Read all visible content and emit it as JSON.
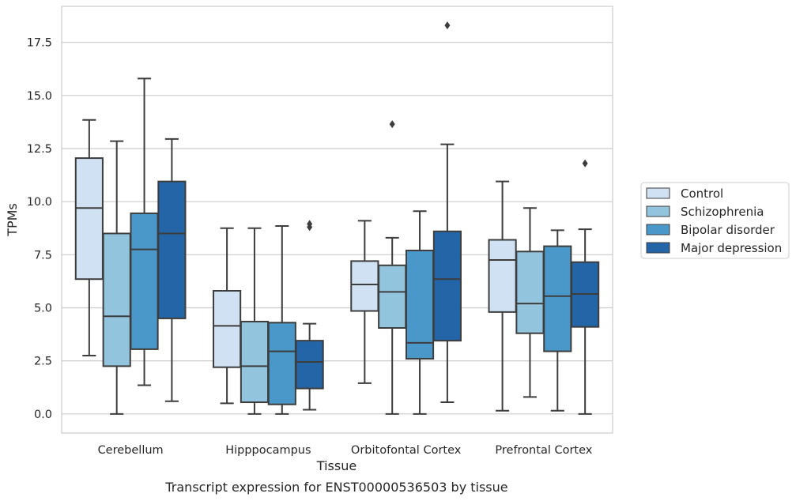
{
  "chart_data": {
    "type": "boxplot",
    "categories": [
      "Cerebellum",
      "Hipppocampus",
      "Orbitofontal Cortex",
      "Prefrontal Cortex"
    ],
    "xlabel": "Tissue",
    "ylabel": "TPMs",
    "caption": "Transcript expression for ENST00000536503 by tissue",
    "ylim": [
      -0.9,
      19.2
    ],
    "yticks": [
      0.0,
      2.5,
      5.0,
      7.5,
      10.0,
      12.5,
      15.0,
      17.5
    ],
    "ytick_labels": [
      "0.0",
      "2.5",
      "5.0",
      "7.5",
      "10.0",
      "12.5",
      "15.0",
      "17.5"
    ],
    "grid": "horizontal",
    "legend_position": "right",
    "series": [
      {
        "name": "Control",
        "color": "#cfe1f2",
        "boxes": [
          {
            "whisker_low": 2.75,
            "q1": 6.35,
            "median": 9.7,
            "q3": 12.05,
            "whisker_high": 13.85,
            "outliers": []
          },
          {
            "whisker_low": 0.5,
            "q1": 2.2,
            "median": 4.15,
            "q3": 5.8,
            "whisker_high": 8.75,
            "outliers": []
          },
          {
            "whisker_low": 1.45,
            "q1": 4.85,
            "median": 6.1,
            "q3": 7.2,
            "whisker_high": 9.1,
            "outliers": []
          },
          {
            "whisker_low": 0.15,
            "q1": 4.8,
            "median": 7.25,
            "q3": 8.2,
            "whisker_high": 10.95,
            "outliers": []
          }
        ]
      },
      {
        "name": "Schizophrenia",
        "color": "#93c4de",
        "boxes": [
          {
            "whisker_low": 0.0,
            "q1": 2.25,
            "median": 4.6,
            "q3": 8.5,
            "whisker_high": 12.85,
            "outliers": []
          },
          {
            "whisker_low": 0.0,
            "q1": 0.55,
            "median": 2.25,
            "q3": 4.35,
            "whisker_high": 8.75,
            "outliers": []
          },
          {
            "whisker_low": 0.0,
            "q1": 4.05,
            "median": 5.75,
            "q3": 7.0,
            "whisker_high": 8.3,
            "outliers": [
              13.65
            ]
          },
          {
            "whisker_low": 0.8,
            "q1": 3.8,
            "median": 5.2,
            "q3": 7.65,
            "whisker_high": 9.7,
            "outliers": []
          }
        ]
      },
      {
        "name": "Bipolar disorder",
        "color": "#4a98c9",
        "boxes": [
          {
            "whisker_low": 1.35,
            "q1": 3.05,
            "median": 7.75,
            "q3": 9.45,
            "whisker_high": 15.8,
            "outliers": []
          },
          {
            "whisker_low": 0.0,
            "q1": 0.45,
            "median": 2.95,
            "q3": 4.3,
            "whisker_high": 8.85,
            "outliers": []
          },
          {
            "whisker_low": 0.0,
            "q1": 2.6,
            "median": 3.35,
            "q3": 7.7,
            "whisker_high": 9.55,
            "outliers": []
          },
          {
            "whisker_low": 0.15,
            "q1": 2.95,
            "median": 5.55,
            "q3": 7.9,
            "whisker_high": 8.65,
            "outliers": []
          }
        ]
      },
      {
        "name": "Major depression",
        "color": "#2465a8",
        "boxes": [
          {
            "whisker_low": 0.6,
            "q1": 4.5,
            "median": 8.5,
            "q3": 10.95,
            "whisker_high": 12.95,
            "outliers": []
          },
          {
            "whisker_low": 0.2,
            "q1": 1.2,
            "median": 2.45,
            "q3": 3.45,
            "whisker_high": 4.25,
            "outliers": [
              8.8,
              8.95
            ]
          },
          {
            "whisker_low": 0.55,
            "q1": 3.45,
            "median": 6.35,
            "q3": 8.6,
            "whisker_high": 12.7,
            "outliers": [
              18.3
            ]
          },
          {
            "whisker_low": 0.0,
            "q1": 4.1,
            "median": 5.65,
            "q3": 7.15,
            "whisker_high": 8.7,
            "outliers": [
              11.8
            ]
          }
        ]
      }
    ]
  }
}
